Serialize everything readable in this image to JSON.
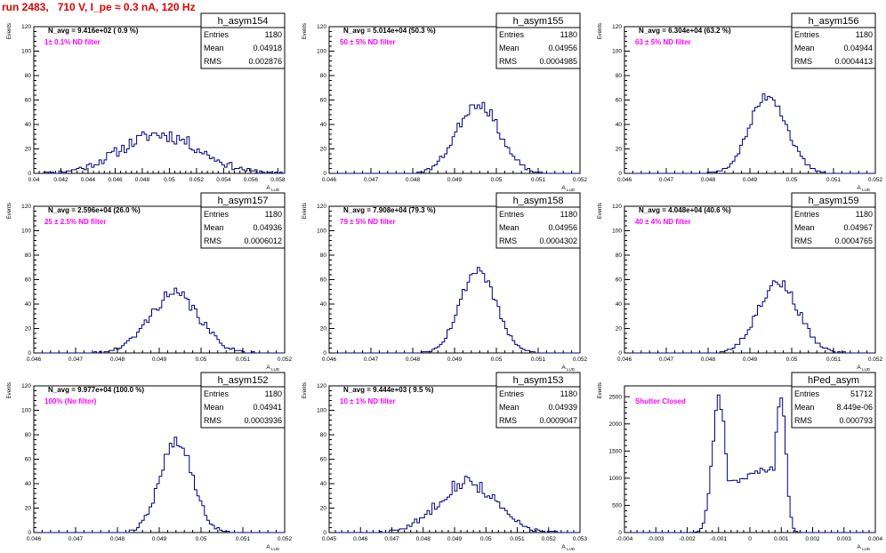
{
  "page_title": "run 2483,   710 V, I_pe ≈ 0.3 nA, 120 Hz",
  "stats_labels": {
    "entries": "Entries",
    "mean": "Mean",
    "rms": "RMS"
  },
  "colors": {
    "title": "#e00000",
    "annotation": "#ff00ff",
    "histogram": "#000080",
    "axis": "#000000"
  },
  "chart_data": [
    {
      "type": "histogram",
      "name": "h_asym154",
      "stats": {
        "entries": "1180",
        "mean": "0.04918",
        "rms": "0.002876"
      },
      "n_avg": "N_avg = 9.416e+02 ( 0.9 %)",
      "filter": "1± 0.1% ND filter",
      "ylabel": "Events",
      "xlabel": "A",
      "xlim": [
        0.04,
        0.0585
      ],
      "ylim": [
        0,
        120
      ],
      "xticks": [
        0.04,
        0.042,
        0.044,
        0.046,
        0.048,
        0.05,
        0.052,
        0.054,
        0.056,
        0.058
      ],
      "xtick_labels": [
        "0.04",
        "0.042",
        "0.044",
        "0.046",
        "0.048",
        "0.05",
        "0.052",
        "0.054",
        "0.056",
        "0.058"
      ],
      "yticks": [
        0,
        20,
        40,
        60,
        80,
        100,
        120
      ],
      "peak_x": 0.0493,
      "sigma": 0.0029,
      "peak": 32,
      "nbins": 100,
      "seed": 11,
      "noise": 0.35
    },
    {
      "type": "histogram",
      "name": "h_asym155",
      "stats": {
        "entries": "1180",
        "mean": "0.04956",
        "rms": "0.0004985"
      },
      "n_avg": "N_avg = 5.014e+04 (50.3 %)",
      "filter": "50 ± 5% ND filter",
      "ylabel": "Events",
      "xlabel": "A",
      "xlim": [
        0.046,
        0.052
      ],
      "ylim": [
        0,
        120
      ],
      "xticks": [
        0.046,
        0.047,
        0.048,
        0.049,
        0.05,
        0.051,
        0.052
      ],
      "xtick_labels": [
        "0.046",
        "0.047",
        "0.048",
        "0.049",
        "0.05",
        "0.051",
        "0.052"
      ],
      "yticks": [
        0,
        20,
        40,
        60,
        80,
        100,
        120
      ],
      "peak_x": 0.04956,
      "sigma": 0.0005,
      "peak": 58,
      "nbins": 100,
      "seed": 23,
      "noise": 0.22
    },
    {
      "type": "histogram",
      "name": "h_asym156",
      "stats": {
        "entries": "1180",
        "mean": "0.04944",
        "rms": "0.0004413"
      },
      "n_avg": "N_avg = 6.304e+04 (63.2 %)",
      "filter": "63 ± 5% ND filter",
      "ylabel": "Events",
      "xlabel": "A",
      "xlim": [
        0.046,
        0.052
      ],
      "ylim": [
        0,
        120
      ],
      "xticks": [
        0.046,
        0.047,
        0.048,
        0.049,
        0.05,
        0.051,
        0.052
      ],
      "xtick_labels": [
        "0.046",
        "0.047",
        "0.048",
        "0.049",
        "0.05",
        "0.051",
        "0.052"
      ],
      "yticks": [
        0,
        20,
        40,
        60,
        80,
        100,
        120
      ],
      "peak_x": 0.04944,
      "sigma": 0.00044,
      "peak": 64,
      "nbins": 100,
      "seed": 37,
      "noise": 0.2
    },
    {
      "type": "histogram",
      "name": "h_asym157",
      "stats": {
        "entries": "1180",
        "mean": "0.04936",
        "rms": "0.0006012"
      },
      "n_avg": "N_avg = 2.596e+04 (26.0 %)",
      "filter": "25 ± 2.5% ND filter",
      "ylabel": "Events",
      "xlabel": "A",
      "xlim": [
        0.046,
        0.052
      ],
      "ylim": [
        0,
        120
      ],
      "xticks": [
        0.046,
        0.047,
        0.048,
        0.049,
        0.05,
        0.051,
        0.052
      ],
      "xtick_labels": [
        "0.046",
        "0.047",
        "0.048",
        "0.049",
        "0.05",
        "0.051",
        "0.052"
      ],
      "yticks": [
        0,
        20,
        40,
        60,
        80,
        100,
        120
      ],
      "peak_x": 0.04936,
      "sigma": 0.0006,
      "peak": 48,
      "nbins": 100,
      "seed": 41,
      "noise": 0.25
    },
    {
      "type": "histogram",
      "name": "h_asym158",
      "stats": {
        "entries": "1180",
        "mean": "0.04956",
        "rms": "0.0004302"
      },
      "n_avg": "N_avg = 7.908e+04 (79.3 %)",
      "filter": "79 ± 5% ND filter",
      "ylabel": "Events",
      "xlabel": "A",
      "xlim": [
        0.046,
        0.052
      ],
      "ylim": [
        0,
        120
      ],
      "xticks": [
        0.046,
        0.047,
        0.048,
        0.049,
        0.05,
        0.051,
        0.052
      ],
      "xtick_labels": [
        "0.046",
        "0.047",
        "0.048",
        "0.049",
        "0.05",
        "0.051",
        "0.052"
      ],
      "yticks": [
        0,
        20,
        40,
        60,
        80,
        100,
        120
      ],
      "peak_x": 0.04956,
      "sigma": 0.00043,
      "peak": 68,
      "nbins": 100,
      "seed": 53,
      "noise": 0.18
    },
    {
      "type": "histogram",
      "name": "h_asym159",
      "stats": {
        "entries": "1180",
        "mean": "0.04967",
        "rms": "0.0004765"
      },
      "n_avg": "N_avg = 4.048e+04 (40.6 %)",
      "filter": "40 ± 4% ND filter",
      "ylabel": "Events",
      "xlabel": "A",
      "xlim": [
        0.046,
        0.052
      ],
      "ylim": [
        0,
        120
      ],
      "xticks": [
        0.046,
        0.047,
        0.048,
        0.049,
        0.05,
        0.051,
        0.052
      ],
      "xtick_labels": [
        "0.046",
        "0.047",
        "0.048",
        "0.049",
        "0.05",
        "0.051",
        "0.052"
      ],
      "yticks": [
        0,
        20,
        40,
        60,
        80,
        100,
        120
      ],
      "peak_x": 0.04967,
      "sigma": 0.00048,
      "peak": 58,
      "nbins": 100,
      "seed": 67,
      "noise": 0.2
    },
    {
      "type": "histogram",
      "name": "h_asym152",
      "stats": {
        "entries": "1180",
        "mean": "0.04941",
        "rms": "0.0003936"
      },
      "n_avg": "N_avg = 9.977e+04 (100.0 %)",
      "filter": "100% (No filter)",
      "ylabel": "Events",
      "xlabel": "A",
      "xlim": [
        0.046,
        0.052
      ],
      "ylim": [
        0,
        120
      ],
      "xticks": [
        0.046,
        0.047,
        0.048,
        0.049,
        0.05,
        0.051,
        0.052
      ],
      "xtick_labels": [
        "0.046",
        "0.047",
        "0.048",
        "0.049",
        "0.05",
        "0.051",
        "0.052"
      ],
      "yticks": [
        0,
        20,
        40,
        60,
        80,
        100,
        120
      ],
      "peak_x": 0.04941,
      "sigma": 0.00039,
      "peak": 76,
      "nbins": 100,
      "seed": 79,
      "noise": 0.2
    },
    {
      "type": "histogram",
      "name": "h_asym153",
      "stats": {
        "entries": "1180",
        "mean": "0.04939",
        "rms": "0.0009047"
      },
      "n_avg": "N_avg = 9.444e+03 ( 9.5 %)",
      "filter": "10 ± 1% ND filter",
      "ylabel": "Events",
      "xlabel": "A",
      "xlim": [
        0.045,
        0.053
      ],
      "ylim": [
        0,
        120
      ],
      "xticks": [
        0.045,
        0.046,
        0.047,
        0.048,
        0.049,
        0.05,
        0.051,
        0.052,
        0.053
      ],
      "xtick_labels": [
        "0.045",
        "0.046",
        "0.047",
        "0.048",
        "0.049",
        "0.05",
        "0.051",
        "0.052",
        "0.053"
      ],
      "yticks": [
        0,
        20,
        40,
        60,
        80,
        100,
        120
      ],
      "peak_x": 0.04939,
      "sigma": 0.0009,
      "peak": 42,
      "nbins": 100,
      "seed": 83,
      "noise": 0.3
    },
    {
      "type": "histogram",
      "name": "hPed_asym",
      "stats": {
        "entries": "51712",
        "mean": "8.449e-06",
        "rms": "0.000793"
      },
      "n_avg": "",
      "filter": "Shutter Closed",
      "ylabel": "Events",
      "xlabel": "A",
      "xlim": [
        -0.004,
        0.004
      ],
      "ylim": [
        0,
        2700
      ],
      "xticks": [
        -0.004,
        -0.003,
        -0.002,
        -0.001,
        0,
        0.001,
        0.002,
        0.003,
        0.004
      ],
      "xtick_labels": [
        "-0.004",
        "-0.003",
        "-0.002",
        "-0.001",
        "0",
        "0.001",
        "0.002",
        "0.003",
        "0.004"
      ],
      "yticks": [
        0,
        500,
        1000,
        1500,
        2000,
        2500
      ],
      "bimodal": true,
      "peaks": [
        -0.00098,
        0.00098
      ],
      "peak": 2600,
      "valley": 1050,
      "nbins": 100,
      "seed": 97,
      "noise": 0.05
    }
  ]
}
